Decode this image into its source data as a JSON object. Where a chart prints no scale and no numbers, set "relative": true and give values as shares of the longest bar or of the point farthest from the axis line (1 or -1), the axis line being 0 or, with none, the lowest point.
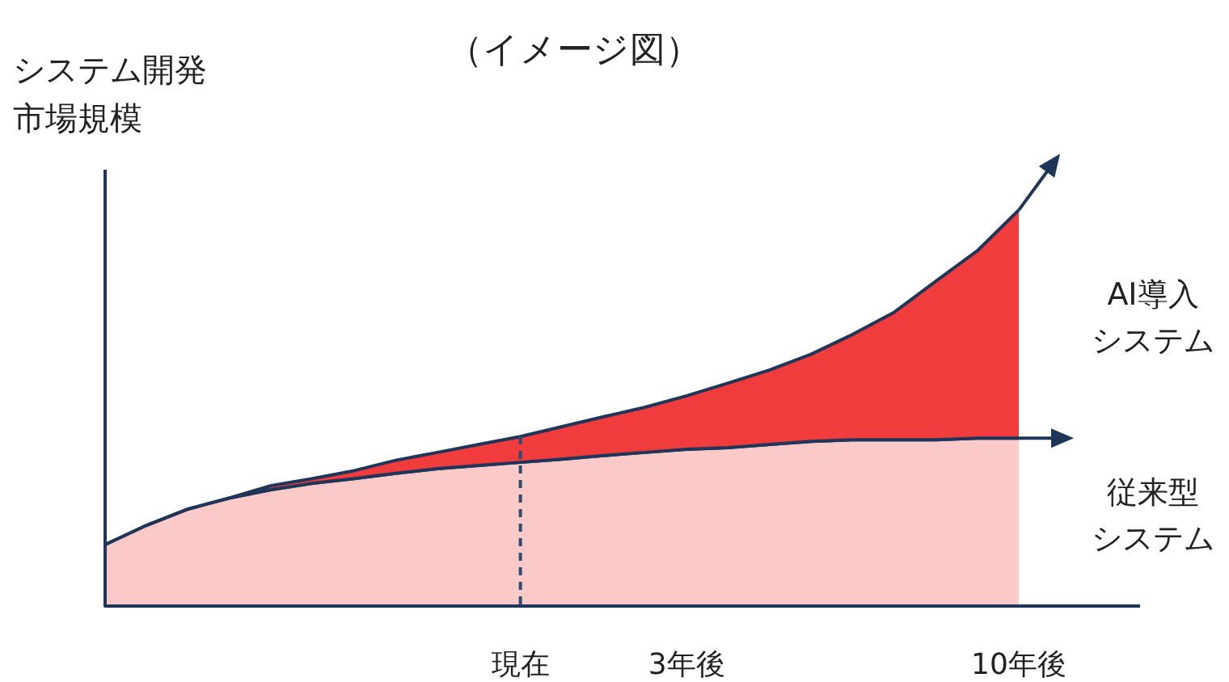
{
  "chart_data": {
    "type": "area",
    "title": "（イメージ図）",
    "ylabel": "システム開発市場規模",
    "relative": true,
    "stacked": true,
    "legend": false,
    "categories": [
      null,
      null,
      null,
      null,
      null,
      null,
      null,
      null,
      null,
      null,
      "現在",
      null,
      null,
      null,
      "3年後",
      null,
      null,
      null,
      null,
      null,
      null,
      null,
      "10年後"
    ],
    "series": [
      {
        "name": "従来型システム",
        "color": "#fcc9c9",
        "values": [
          0.155,
          0.204,
          0.245,
          0.273,
          0.294,
          0.31,
          0.322,
          0.335,
          0.347,
          0.355,
          0.363,
          0.371,
          0.38,
          0.388,
          0.396,
          0.4,
          0.408,
          0.416,
          0.42,
          0.42,
          0.42,
          0.424,
          0.424
        ]
      },
      {
        "name": "AI導入システム",
        "color": "#f03c3c",
        "values": [
          0,
          0,
          0,
          0,
          0.01,
          0.012,
          0.02,
          0.033,
          0.041,
          0.053,
          0.065,
          0.082,
          0.098,
          0.114,
          0.135,
          0.163,
          0.188,
          0.22,
          0.266,
          0.322,
          0.4,
          0.473,
          0.576
        ]
      }
    ],
    "ref_lines": [
      {
        "axis": "x",
        "value": "現在",
        "line_style": "dashed",
        "color": "#2f4a6a"
      }
    ]
  }
}
